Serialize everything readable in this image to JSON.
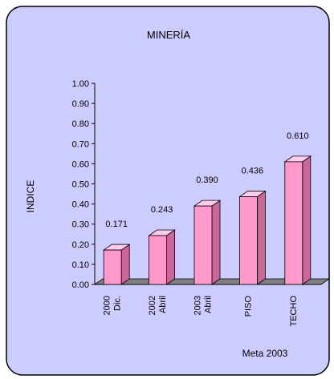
{
  "chart_data": {
    "type": "bar",
    "title": "MINERÍA",
    "xlabel": "",
    "ylabel": "INDICE",
    "ylim": [
      0,
      1.0
    ],
    "yticks": [
      "0.00",
      "0.10",
      "0.20",
      "0.30",
      "0.40",
      "0.50",
      "0.60",
      "0.70",
      "0.80",
      "0.90",
      "1.00"
    ],
    "categories": [
      [
        "2000",
        "Dic."
      ],
      [
        "2002",
        "Abril"
      ],
      [
        "2003",
        "Abril"
      ],
      [
        "PISO"
      ],
      [
        "TECHO"
      ]
    ],
    "values": [
      0.171,
      0.243,
      0.39,
      0.436,
      0.61
    ],
    "value_labels": [
      "0.171",
      "0.243",
      "0.390",
      "0.436",
      "0.610"
    ],
    "annotation": "Meta 2003",
    "grid": false,
    "legend": "none",
    "colors": {
      "panel_bg": "#ccccff",
      "panel_border": "#000000",
      "bar_front": "#ff99cc",
      "bar_side": "#cc6699",
      "bar_top": "#ffccee",
      "floor": "#808080"
    }
  }
}
